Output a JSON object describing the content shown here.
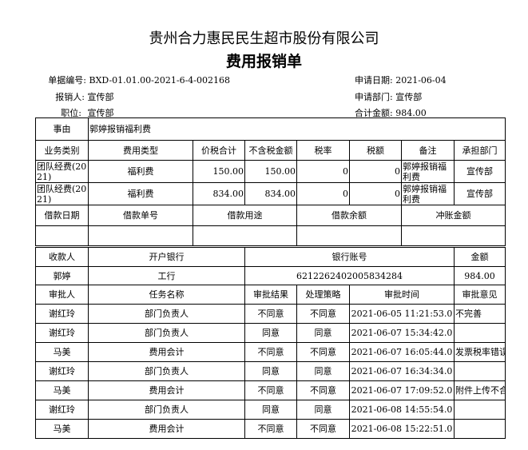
{
  "company": "贵州合力惠民民生超市股份有限公司",
  "title": "费用报销单",
  "info": {
    "doc_no_label": "单据编号:",
    "doc_no": "BXD-01.01.00-2021-6-4-002168",
    "applicant_label": "报销人:",
    "applicant": "宣传部",
    "position_label": "职位:",
    "position": "宣传部",
    "date_label": "申请日期:",
    "date": "2021-06-04",
    "dept_label": "申请部门:",
    "dept": "宣传部",
    "total_label": "合计金额:",
    "total": "984.00"
  },
  "reason": {
    "label": "事由",
    "value": "郭婷报销福利费"
  },
  "expense": {
    "headers": [
      "业务类别",
      "费用类型",
      "价税合计",
      "不含税金额",
      "税率",
      "税额",
      "备注",
      "承担部门"
    ],
    "rows": [
      [
        "团队经费(2021)",
        "福利费",
        "150.00",
        "150.00",
        "0",
        "0",
        "郭婷报销福利费",
        "宣传部"
      ],
      [
        "团队经费(2021)",
        "福利费",
        "834.00",
        "834.00",
        "0",
        "0",
        "郭婷报销福利费",
        "宣传部"
      ]
    ]
  },
  "loan": {
    "headers": [
      "借款日期",
      "借款单号",
      "借款用途",
      "借款余额",
      "冲账金额"
    ]
  },
  "payee": {
    "headers": [
      "收款人",
      "开户银行",
      "银行账号",
      "金额"
    ],
    "row": [
      "郭婷",
      "工行",
      "6212262402005834284",
      "984.00"
    ]
  },
  "approval": {
    "headers": [
      "审批人",
      "任务名称",
      "审批结果",
      "处理策略",
      "审批时间",
      "审批意见"
    ],
    "rows": [
      [
        "谢红玲",
        "部门负责人",
        "不同意",
        "不同意",
        "2021-06-05 11:21:53.0",
        "不完善"
      ],
      [
        "谢红玲",
        "部门负责人",
        "同意",
        "同意",
        "2021-06-07 15:34:42.0",
        ""
      ],
      [
        "马美",
        "费用会计",
        "不同意",
        "不同意",
        "2021-06-07 16:05:44.0",
        "发票税率错误"
      ],
      [
        "谢红玲",
        "部门负责人",
        "同意",
        "同意",
        "2021-06-07 16:34:34.0",
        ""
      ],
      [
        "马美",
        "费用会计",
        "不同意",
        "不同意",
        "2021-06-07 17:09:52.0",
        "附件上传不合"
      ],
      [
        "谢红玲",
        "部门负责人",
        "同意",
        "同意",
        "2021-06-08 14:55:54.0",
        ""
      ],
      [
        "马美",
        "费用会计",
        "不同意",
        "不同意",
        "2021-06-08 15:22:51.0",
        ""
      ]
    ]
  }
}
